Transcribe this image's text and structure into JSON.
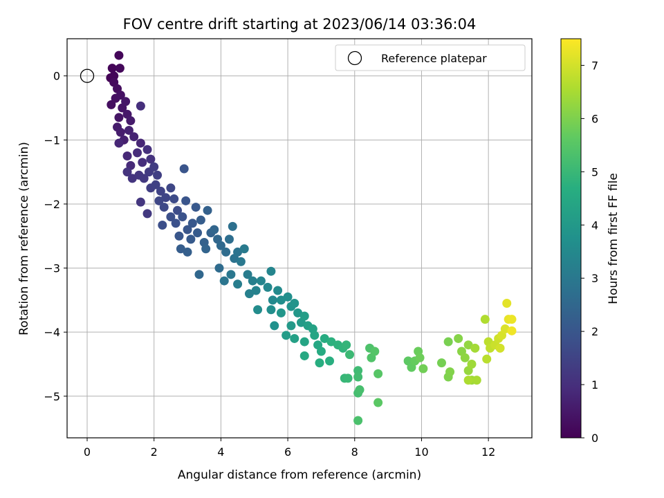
{
  "chart_data": {
    "type": "scatter",
    "title": "FOV centre drift starting at 2023/06/14 03:36:04",
    "xlabel": "Angular distance from reference (arcmin)",
    "ylabel": "Rotation from reference (arcmin)",
    "colorbar_label": "Hours from first FF file",
    "xlim": [
      -0.6,
      13.3
    ],
    "ylim": [
      -5.65,
      0.58
    ],
    "x_ticks": [
      0,
      2,
      4,
      6,
      8,
      10,
      12
    ],
    "y_ticks": [
      0,
      -1,
      -2,
      -3,
      -4,
      -5
    ],
    "colorbar_range": [
      0,
      7.5
    ],
    "colorbar_ticks": [
      0,
      1,
      2,
      3,
      4,
      5,
      6,
      7
    ],
    "colormap": "viridis",
    "grid": true,
    "legend": {
      "position": "top-right",
      "entries": [
        "Reference platepar"
      ]
    },
    "reference_point": {
      "x": 0,
      "y": 0
    },
    "points": [
      [
        0.7,
        -0.03,
        0.05
      ],
      [
        0.75,
        0.12,
        0.08
      ],
      [
        0.8,
        0.0,
        0.1
      ],
      [
        0.95,
        0.32,
        0.12
      ],
      [
        0.98,
        0.12,
        0.15
      ],
      [
        0.8,
        -0.1,
        0.2
      ],
      [
        0.9,
        -0.2,
        0.25
      ],
      [
        0.72,
        -0.45,
        0.3
      ],
      [
        0.85,
        -0.35,
        0.32
      ],
      [
        1.0,
        -0.3,
        0.35
      ],
      [
        1.05,
        -0.5,
        0.4
      ],
      [
        0.95,
        -0.65,
        0.42
      ],
      [
        1.15,
        -0.4,
        0.45
      ],
      [
        1.2,
        -0.6,
        0.5
      ],
      [
        1.3,
        -0.7,
        0.55
      ],
      [
        0.9,
        -0.8,
        0.58
      ],
      [
        1.0,
        -0.88,
        0.6
      ],
      [
        1.1,
        -1.0,
        0.65
      ],
      [
        1.25,
        -0.85,
        0.7
      ],
      [
        1.4,
        -0.95,
        0.75
      ],
      [
        1.6,
        -1.05,
        0.8
      ],
      [
        0.95,
        -1.05,
        0.82
      ],
      [
        1.2,
        -1.25,
        0.85
      ],
      [
        1.3,
        -1.4,
        0.9
      ],
      [
        1.5,
        -1.2,
        0.95
      ],
      [
        1.65,
        -1.35,
        1.0
      ],
      [
        1.8,
        -1.15,
        1.05
      ],
      [
        1.9,
        -1.3,
        1.1
      ],
      [
        1.2,
        -1.5,
        1.12
      ],
      [
        1.35,
        -1.6,
        1.15
      ],
      [
        1.55,
        -1.55,
        1.2
      ],
      [
        1.7,
        -1.6,
        1.25
      ],
      [
        1.85,
        -1.5,
        1.3
      ],
      [
        2.0,
        -1.42,
        1.35
      ],
      [
        2.1,
        -1.55,
        1.4
      ],
      [
        1.6,
        -0.47,
        1.0
      ],
      [
        1.6,
        -1.97,
        1.2
      ],
      [
        1.8,
        -2.15,
        1.25
      ],
      [
        1.9,
        -1.75,
        1.4
      ],
      [
        2.05,
        -1.7,
        1.45
      ],
      [
        2.2,
        -1.8,
        1.5
      ],
      [
        2.35,
        -1.9,
        1.55
      ],
      [
        2.5,
        -1.75,
        1.6
      ],
      [
        2.15,
        -1.95,
        1.6
      ],
      [
        2.3,
        -2.05,
        1.65
      ],
      [
        2.6,
        -1.92,
        1.7
      ],
      [
        2.7,
        -2.1,
        1.75
      ],
      [
        2.25,
        -2.33,
        1.8
      ],
      [
        2.5,
        -2.2,
        1.82
      ],
      [
        2.65,
        -2.3,
        1.85
      ],
      [
        2.85,
        -2.2,
        1.9
      ],
      [
        2.9,
        -1.45,
        1.95
      ],
      [
        2.95,
        -1.95,
        1.95
      ],
      [
        3.0,
        -2.4,
        2.0
      ],
      [
        2.75,
        -2.5,
        2.0
      ],
      [
        3.15,
        -2.3,
        2.05
      ],
      [
        3.25,
        -2.05,
        2.05
      ],
      [
        3.1,
        -2.55,
        2.1
      ],
      [
        3.3,
        -2.45,
        2.15
      ],
      [
        3.4,
        -2.25,
        2.2
      ],
      [
        2.8,
        -2.7,
        2.2
      ],
      [
        3.0,
        -2.75,
        2.25
      ],
      [
        3.5,
        -2.6,
        2.3
      ],
      [
        3.6,
        -2.1,
        2.3
      ],
      [
        3.7,
        -2.45,
        2.35
      ],
      [
        3.55,
        -2.7,
        2.4
      ],
      [
        3.8,
        -2.4,
        2.45
      ],
      [
        3.35,
        -3.1,
        2.5
      ],
      [
        3.9,
        -2.55,
        2.5
      ],
      [
        4.0,
        -2.65,
        2.55
      ],
      [
        3.95,
        -3.0,
        2.6
      ],
      [
        4.15,
        -2.75,
        2.65
      ],
      [
        4.25,
        -2.55,
        2.7
      ],
      [
        4.35,
        -2.35,
        2.75
      ],
      [
        4.4,
        -2.85,
        2.8
      ],
      [
        4.5,
        -2.75,
        2.85
      ],
      [
        4.1,
        -3.2,
        2.9
      ],
      [
        4.3,
        -3.1,
        2.95
      ],
      [
        4.6,
        -2.9,
        3.0
      ],
      [
        4.7,
        -2.7,
        3.05
      ],
      [
        4.8,
        -3.1,
        3.1
      ],
      [
        4.5,
        -3.25,
        3.15
      ],
      [
        4.95,
        -3.2,
        3.2
      ],
      [
        4.85,
        -3.4,
        3.25
      ],
      [
        5.05,
        -3.35,
        3.3
      ],
      [
        5.2,
        -3.2,
        3.35
      ],
      [
        5.5,
        -3.05,
        3.4
      ],
      [
        5.4,
        -3.3,
        3.45
      ],
      [
        5.55,
        -3.5,
        3.5
      ],
      [
        5.7,
        -3.35,
        3.55
      ],
      [
        5.1,
        -3.65,
        3.6
      ],
      [
        5.5,
        -3.65,
        3.65
      ],
      [
        5.8,
        -3.5,
        3.65
      ],
      [
        6.0,
        -3.45,
        3.7
      ],
      [
        5.6,
        -3.9,
        3.75
      ],
      [
        6.1,
        -3.6,
        3.8
      ],
      [
        6.2,
        -3.55,
        3.85
      ],
      [
        5.8,
        -3.7,
        3.9
      ],
      [
        6.3,
        -3.7,
        3.95
      ],
      [
        6.1,
        -3.9,
        4.0
      ],
      [
        6.4,
        -3.85,
        4.05
      ],
      [
        5.95,
        -4.05,
        4.1
      ],
      [
        6.5,
        -3.75,
        4.15
      ],
      [
        6.6,
        -3.9,
        4.2
      ],
      [
        6.2,
        -4.1,
        4.25
      ],
      [
        6.75,
        -3.95,
        4.3
      ],
      [
        6.5,
        -4.15,
        4.35
      ],
      [
        6.8,
        -4.05,
        4.4
      ],
      [
        6.9,
        -4.2,
        4.45
      ],
      [
        6.5,
        -4.37,
        4.5
      ],
      [
        7.0,
        -4.3,
        4.55
      ],
      [
        7.1,
        -4.1,
        4.6
      ],
      [
        6.95,
        -4.48,
        4.65
      ],
      [
        7.25,
        -4.45,
        4.7
      ],
      [
        7.3,
        -4.15,
        4.75
      ],
      [
        7.5,
        -4.2,
        4.8
      ],
      [
        7.65,
        -4.25,
        4.85
      ],
      [
        7.75,
        -4.2,
        4.9
      ],
      [
        7.7,
        -4.72,
        4.95
      ],
      [
        7.8,
        -4.72,
        5.0
      ],
      [
        7.85,
        -4.35,
        5.05
      ],
      [
        8.1,
        -4.6,
        5.1
      ],
      [
        8.1,
        -4.7,
        5.15
      ],
      [
        8.1,
        -4.95,
        5.2
      ],
      [
        8.15,
        -4.9,
        5.25
      ],
      [
        8.1,
        -5.38,
        5.3
      ],
      [
        8.45,
        -4.25,
        5.35
      ],
      [
        8.5,
        -4.4,
        5.4
      ],
      [
        8.6,
        -4.3,
        5.45
      ],
      [
        8.7,
        -4.65,
        5.5
      ],
      [
        8.7,
        -5.1,
        5.55
      ],
      [
        9.6,
        -4.45,
        5.6
      ],
      [
        9.7,
        -4.55,
        5.65
      ],
      [
        9.8,
        -4.45,
        5.7
      ],
      [
        9.9,
        -4.3,
        5.75
      ],
      [
        9.95,
        -4.4,
        5.8
      ],
      [
        10.05,
        -4.57,
        5.85
      ],
      [
        10.6,
        -4.48,
        5.9
      ],
      [
        10.8,
        -4.15,
        5.95
      ],
      [
        10.8,
        -4.7,
        6.0
      ],
      [
        10.85,
        -4.62,
        6.05
      ],
      [
        11.1,
        -4.1,
        6.1
      ],
      [
        11.2,
        -4.3,
        6.15
      ],
      [
        11.3,
        -4.4,
        6.2
      ],
      [
        11.4,
        -4.2,
        6.25
      ],
      [
        11.4,
        -4.6,
        6.3
      ],
      [
        11.5,
        -4.75,
        6.35
      ],
      [
        11.5,
        -4.5,
        6.4
      ],
      [
        11.6,
        -4.25,
        6.45
      ],
      [
        11.65,
        -4.75,
        6.5
      ],
      [
        11.4,
        -4.75,
        6.55
      ],
      [
        11.9,
        -3.8,
        6.6
      ],
      [
        11.95,
        -4.42,
        6.7
      ],
      [
        12.0,
        -4.15,
        6.75
      ],
      [
        12.05,
        -4.25,
        6.8
      ],
      [
        12.2,
        -4.2,
        6.9
      ],
      [
        12.3,
        -4.1,
        6.95
      ],
      [
        12.35,
        -4.25,
        7.0
      ],
      [
        12.4,
        -4.05,
        7.05
      ],
      [
        12.5,
        -3.95,
        7.1
      ],
      [
        12.55,
        -3.55,
        7.2
      ],
      [
        12.6,
        -3.8,
        7.25
      ],
      [
        12.7,
        -3.8,
        7.3
      ],
      [
        12.7,
        -3.98,
        7.35
      ]
    ]
  }
}
